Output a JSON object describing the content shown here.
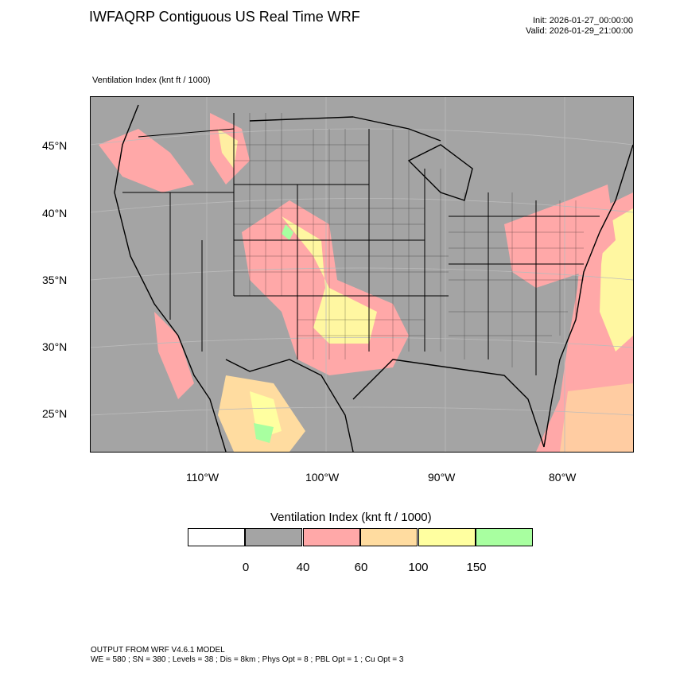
{
  "header": {
    "title": "IWFAQRP Contiguous US Real Time WRF",
    "init": "Init: 2026-01-27_00:00:00",
    "valid": "Valid: 2026-01-29_21:00:00",
    "field_label": "Ventilation Index   (knt ft / 1000)"
  },
  "map": {
    "lat_labels": [
      "45°N",
      "40°N",
      "35°N",
      "30°N",
      "25°N"
    ],
    "lon_labels": [
      "110°W",
      "100°W",
      "90°W",
      "80°W"
    ],
    "colors": {
      "land_low": "#a4a4a4",
      "pink": "#ffa0a0",
      "orange": "#ffdca0",
      "yellow": "#ffff a0",
      "green": "#a0ffa0"
    }
  },
  "colorbar": {
    "title": "Ventilation Index  (knt ft / 1000)",
    "colors": [
      "#ffffff",
      "#a4a4a4",
      "#ffa8a8",
      "#ffdca0",
      "#ffffa0",
      "#a8ffa0"
    ],
    "tick_labels": [
      "0",
      "40",
      "60",
      "100",
      "150"
    ]
  },
  "footer": {
    "line1": "OUTPUT FROM WRF V4.6.1 MODEL",
    "line2": "WE = 580 ; SN = 380 ; Levels = 38 ; Dis = 8km ; Phys Opt = 8 ; PBL Opt = 1 ; Cu Opt = 3"
  }
}
